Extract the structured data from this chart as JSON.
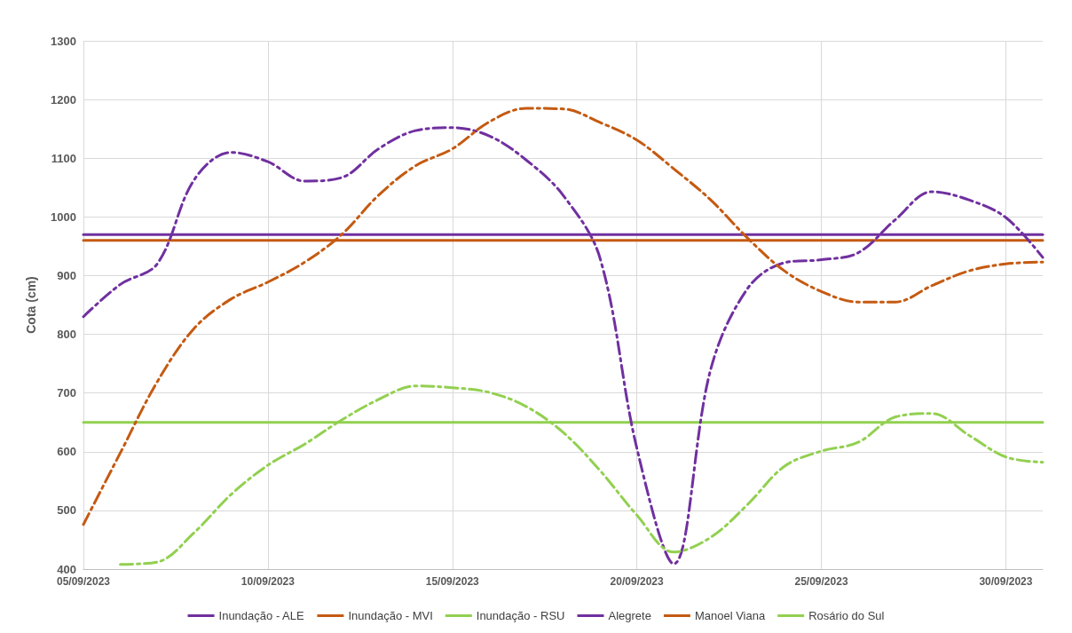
{
  "chart_data": {
    "type": "line",
    "ylabel": "Cota (cm)",
    "x": [
      "2023-09-05",
      "2023-09-06",
      "2023-09-07",
      "2023-09-08",
      "2023-09-09",
      "2023-09-10",
      "2023-09-11",
      "2023-09-12",
      "2023-09-13",
      "2023-09-14",
      "2023-09-15",
      "2023-09-16",
      "2023-09-17",
      "2023-09-18",
      "2023-09-19",
      "2023-09-20",
      "2023-09-21",
      "2023-09-22",
      "2023-09-23",
      "2023-09-24",
      "2023-09-25",
      "2023-09-26",
      "2023-09-27",
      "2023-09-28",
      "2023-09-29",
      "2023-09-30",
      "2023-10-01"
    ],
    "series": [
      {
        "name": "Inundação - ALE",
        "color": "#7030a0",
        "line_style": "solid",
        "x": [
          "2023-09-05",
          "2023-10-01"
        ],
        "values": [
          970,
          970
        ]
      },
      {
        "name": "Inundação - MVI",
        "color": "#c55a11",
        "line_style": "solid",
        "x": [
          "2023-09-05",
          "2023-10-01"
        ],
        "values": [
          960,
          960
        ]
      },
      {
        "name": "Inundação - RSU",
        "color": "#92d050",
        "line_style": "solid",
        "x": [
          "2023-09-05",
          "2023-10-01"
        ],
        "values": [
          650,
          650
        ]
      },
      {
        "name": "Alegrete",
        "color": "#7030a0",
        "line_style": "dashed",
        "values": [
          830,
          885,
          920,
          1063,
          1110,
          1094,
          1061,
          1067,
          1116,
          1147,
          1152,
          1138,
          1097,
          1037,
          930,
          606,
          409,
          740,
          878,
          922,
          927,
          939,
          995,
          1043,
          1029,
          999,
          931
        ]
      },
      {
        "name": "Manoel Viana",
        "color": "#c55a11",
        "line_style": "dashed",
        "values": [
          476,
          598,
          719,
          810,
          860,
          889,
          923,
          970,
          1037,
          1087,
          1116,
          1162,
          1185,
          1184,
          1161,
          1131,
          1082,
          1029,
          964,
          908,
          873,
          855,
          855,
          883,
          908,
          920,
          923
        ]
      },
      {
        "name": "Rosário do Sul",
        "color": "#92d050",
        "line_style": "dashed",
        "values": [
          null,
          408,
          412,
          462,
          527,
          577,
          613,
          654,
          689,
          712,
          709,
          701,
          677,
          633,
          568,
          492,
          429,
          454,
          510,
          575,
          601,
          616,
          659,
          665,
          628,
          591,
          582
        ]
      }
    ],
    "xlim": [
      "2023-09-05",
      "2023-10-01"
    ],
    "xticks": [
      {
        "value": "2023-09-05",
        "label": "05/09/2023"
      },
      {
        "value": "2023-09-10",
        "label": "10/09/2023"
      },
      {
        "value": "2023-09-15",
        "label": "15/09/2023"
      },
      {
        "value": "2023-09-20",
        "label": "20/09/2023"
      },
      {
        "value": "2023-09-25",
        "label": "25/09/2023"
      },
      {
        "value": "2023-09-30",
        "label": "30/09/2023"
      }
    ],
    "ylim": [
      400,
      1300
    ],
    "yticks": [
      400,
      500,
      600,
      700,
      800,
      900,
      1000,
      1100,
      1200,
      1300
    ],
    "grid": true,
    "legend": "bottom",
    "marker": "none"
  }
}
